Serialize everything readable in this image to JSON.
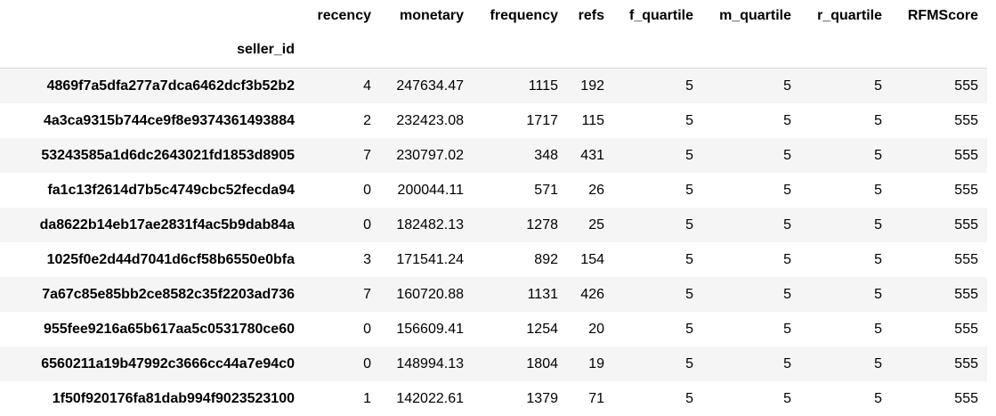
{
  "table": {
    "columns": [
      "recency",
      "monetary",
      "frequency",
      "refs",
      "f_quartile",
      "m_quartile",
      "r_quartile",
      "RFMScore"
    ],
    "index_name": "seller_id",
    "rows": [
      {
        "seller_id": "4869f7a5dfa277a7dca6462dcf3b52b2",
        "recency": "4",
        "monetary": "247634.47",
        "frequency": "1115",
        "refs": "192",
        "f_quartile": "5",
        "m_quartile": "5",
        "r_quartile": "5",
        "RFMScore": "555"
      },
      {
        "seller_id": "4a3ca9315b744ce9f8e9374361493884",
        "recency": "2",
        "monetary": "232423.08",
        "frequency": "1717",
        "refs": "115",
        "f_quartile": "5",
        "m_quartile": "5",
        "r_quartile": "5",
        "RFMScore": "555"
      },
      {
        "seller_id": "53243585a1d6dc2643021fd1853d8905",
        "recency": "7",
        "monetary": "230797.02",
        "frequency": "348",
        "refs": "431",
        "f_quartile": "5",
        "m_quartile": "5",
        "r_quartile": "5",
        "RFMScore": "555"
      },
      {
        "seller_id": "fa1c13f2614d7b5c4749cbc52fecda94",
        "recency": "0",
        "monetary": "200044.11",
        "frequency": "571",
        "refs": "26",
        "f_quartile": "5",
        "m_quartile": "5",
        "r_quartile": "5",
        "RFMScore": "555"
      },
      {
        "seller_id": "da8622b14eb17ae2831f4ac5b9dab84a",
        "recency": "0",
        "monetary": "182482.13",
        "frequency": "1278",
        "refs": "25",
        "f_quartile": "5",
        "m_quartile": "5",
        "r_quartile": "5",
        "RFMScore": "555"
      },
      {
        "seller_id": "1025f0e2d44d7041d6cf58b6550e0bfa",
        "recency": "3",
        "monetary": "171541.24",
        "frequency": "892",
        "refs": "154",
        "f_quartile": "5",
        "m_quartile": "5",
        "r_quartile": "5",
        "RFMScore": "555"
      },
      {
        "seller_id": "7a67c85e85bb2ce8582c35f2203ad736",
        "recency": "7",
        "monetary": "160720.88",
        "frequency": "1131",
        "refs": "426",
        "f_quartile": "5",
        "m_quartile": "5",
        "r_quartile": "5",
        "RFMScore": "555"
      },
      {
        "seller_id": "955fee9216a65b617aa5c0531780ce60",
        "recency": "0",
        "monetary": "156609.41",
        "frequency": "1254",
        "refs": "20",
        "f_quartile": "5",
        "m_quartile": "5",
        "r_quartile": "5",
        "RFMScore": "555"
      },
      {
        "seller_id": "6560211a19b47992c3666cc44a7e94c0",
        "recency": "0",
        "monetary": "148994.13",
        "frequency": "1804",
        "refs": "19",
        "f_quartile": "5",
        "m_quartile": "5",
        "r_quartile": "5",
        "RFMScore": "555"
      },
      {
        "seller_id": "1f50f920176fa81dab994f9023523100",
        "recency": "1",
        "monetary": "142022.61",
        "frequency": "1379",
        "refs": "71",
        "f_quartile": "5",
        "m_quartile": "5",
        "r_quartile": "5",
        "RFMScore": "555"
      }
    ]
  }
}
